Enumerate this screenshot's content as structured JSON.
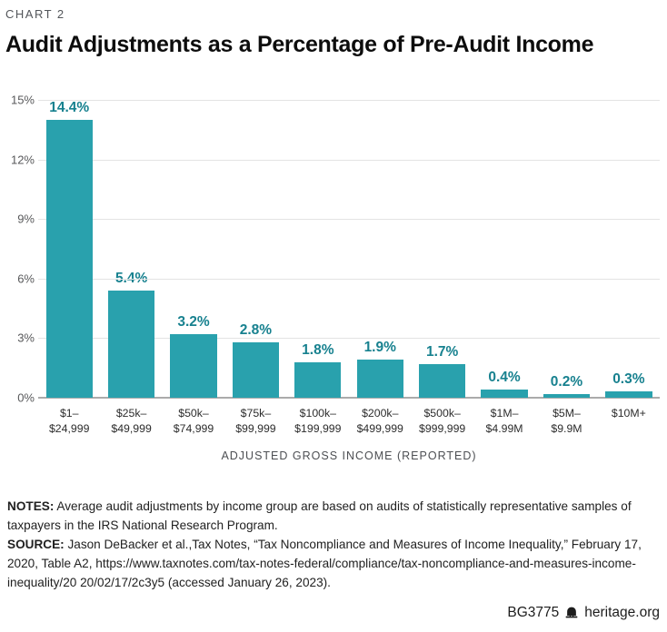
{
  "page": {
    "kicker": "CHART 2",
    "title": "Audit Adjustments as a Percentage of Pre-Audit Income"
  },
  "chart_data": {
    "type": "bar",
    "title": "Audit Adjustments as a Percentage of Pre-Audit Income",
    "xlabel": "ADJUSTED GROSS INCOME (REPORTED)",
    "ylabel": "",
    "ylim": [
      0,
      15
    ],
    "grid": true,
    "legend": "none",
    "y_ticks": [
      "15%",
      "12%",
      "9%",
      "6%",
      "3%",
      "0%"
    ],
    "categories": [
      "$1–$24,999",
      "$25k–$49,999",
      "$50k–$74,999",
      "$75k–$99,999",
      "$100k–$199,999",
      "$200k–$499,999",
      "$500k–$999,999",
      "$1M–$4.99M",
      "$5M–$9.9M",
      "$10M+"
    ],
    "category_lines": [
      [
        "$1–",
        "$24,999"
      ],
      [
        "$25k–",
        "$49,999"
      ],
      [
        "$50k–",
        "$74,999"
      ],
      [
        "$75k–",
        "$99,999"
      ],
      [
        "$100k–",
        "$199,999"
      ],
      [
        "$200k–",
        "$499,999"
      ],
      [
        "$500k–",
        "$999,999"
      ],
      [
        "$1M–",
        "$4.99M"
      ],
      [
        "$5M–",
        "$9.9M"
      ],
      [
        "$10M+",
        ""
      ]
    ],
    "values": [
      14.4,
      5.4,
      3.2,
      2.8,
      1.8,
      1.9,
      1.7,
      0.4,
      0.2,
      0.3
    ],
    "value_labels": [
      "14.4%",
      "5.4%",
      "3.2%",
      "2.8%",
      "1.8%",
      "1.9%",
      "1.7%",
      "0.4%",
      "0.2%",
      "0.3%"
    ],
    "bar_color": "#29a1ad",
    "value_label_color": "#17818f"
  },
  "notes": {
    "notes_label": "NOTES:",
    "notes_text": " Average audit adjustments by income group are based on audits of statistically representative samples of taxpayers in the IRS National Research Program.",
    "source_label": "SOURCE:",
    "source_text": " Jason DeBacker et al.,Tax Notes, “Tax Noncompliance and Measures of Income Inequality,” February 17, 2020, Table A2, https://www.taxnotes.com/tax-notes-federal/compliance/tax-noncompliance-and-measures-income-inequality/20 20/02/17/2c3y5 (accessed January 26, 2023)."
  },
  "footer": {
    "doc_id": "BG3775",
    "site": "heritage.org",
    "bell_icon": "liberty-bell-icon"
  }
}
